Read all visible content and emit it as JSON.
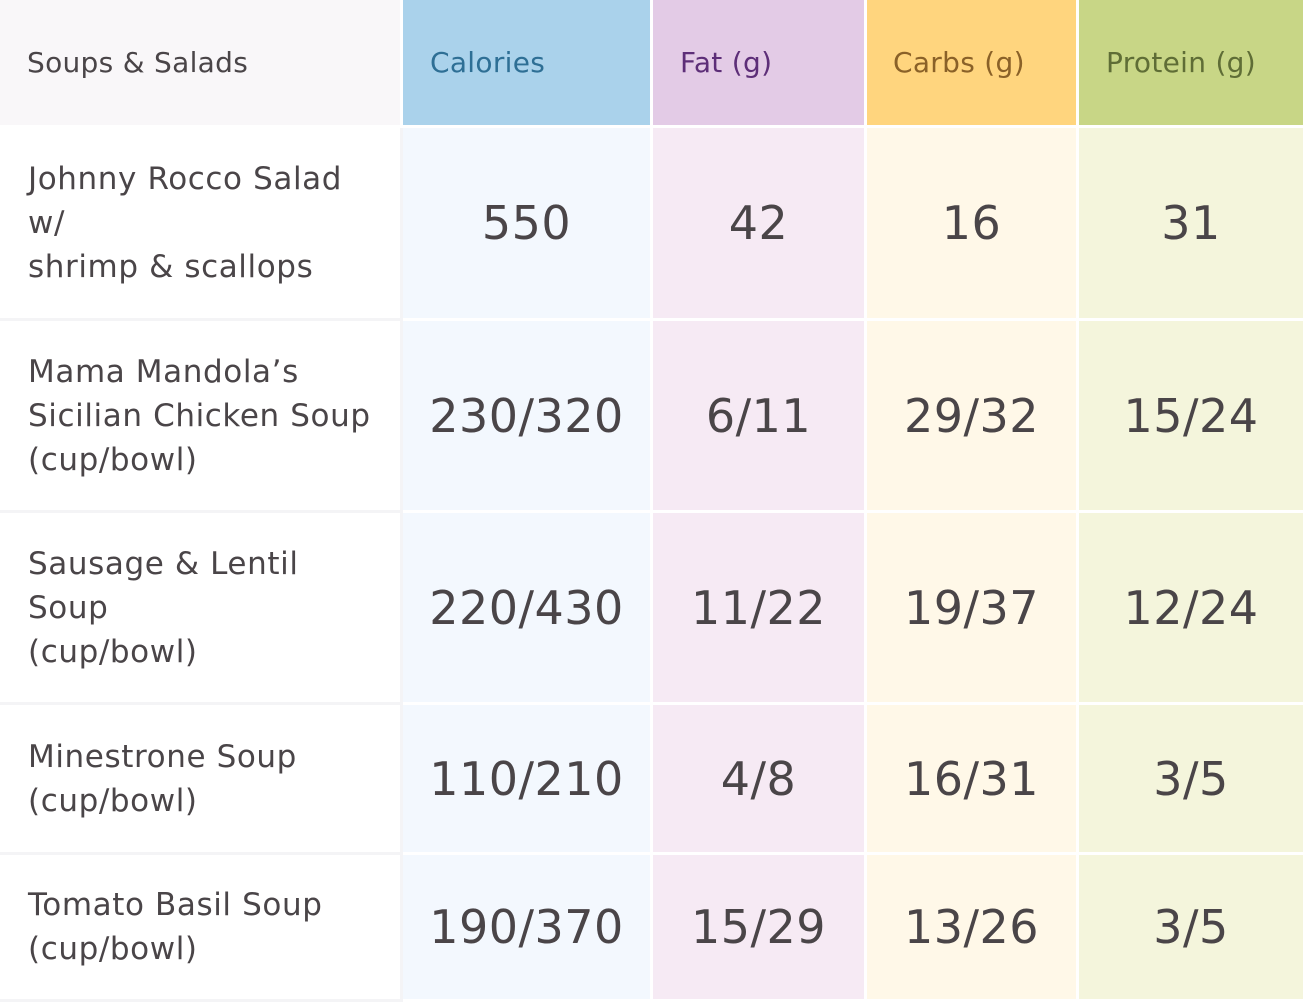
{
  "header": {
    "category": "Soups & Salads",
    "calories": "Calories",
    "fat": "Fat (g)",
    "carbs": "Carbs (g)",
    "protein": "Protein (g)"
  },
  "rows": [
    {
      "name": "Johnny Rocco Salad\nw/\nshrimp & scallops",
      "calories": "550",
      "fat": "42",
      "carbs": "16",
      "protein": "31"
    },
    {
      "name": "Mama Mandola’s\nSicilian Chicken Soup\n(cup/bowl)",
      "calories": "230/320",
      "fat": "6/11",
      "carbs": "29/32",
      "protein": "15/24"
    },
    {
      "name": "Sausage & Lentil\nSoup\n(cup/bowl)",
      "calories": "220/430",
      "fat": "11/22",
      "carbs": "19/37",
      "protein": "12/24"
    },
    {
      "name": "Minestrone Soup\n(cup/bowl)",
      "calories": "110/210",
      "fat": "4/8",
      "carbs": "16/31",
      "protein": "3/5"
    },
    {
      "name": "Tomato Basil Soup\n(cup/bowl)",
      "calories": "190/370",
      "fat": "15/29",
      "carbs": "13/26",
      "protein": "3/5"
    }
  ],
  "colors": {
    "calories_header": "#aad2eb",
    "fat_header": "#e3cbe6",
    "carbs_header": "#ffd57e",
    "protein_header": "#c8d686"
  }
}
